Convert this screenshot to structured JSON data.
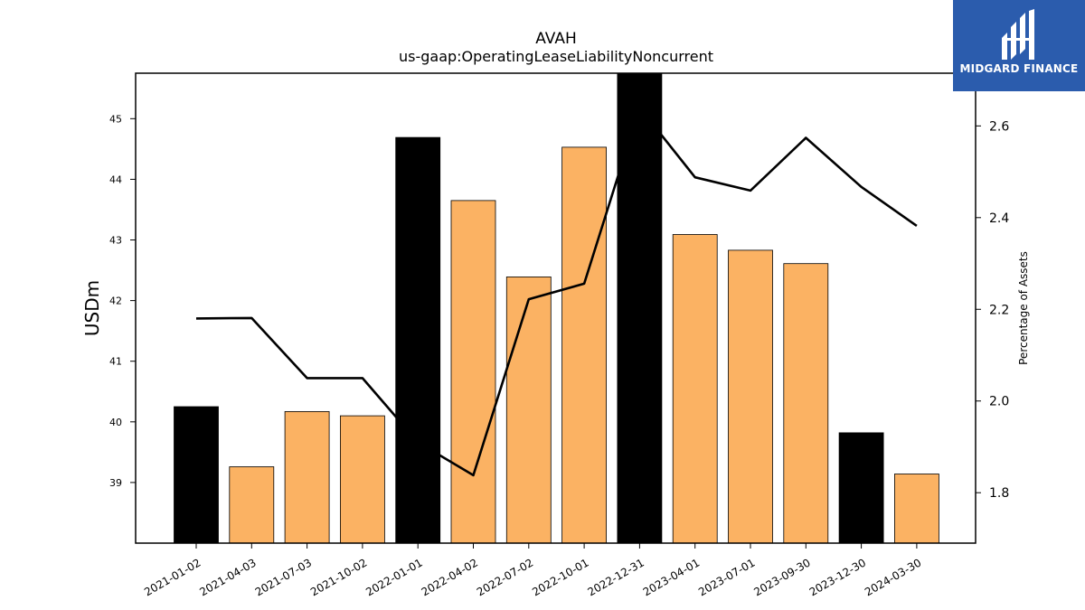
{
  "chart_data": {
    "type": "bar",
    "title": "AVAH",
    "subtitle": "us-gaap:OperatingLeaseLiabilityNoncurrent",
    "ylabel": "USDm",
    "y2label": "Percentage of Assets",
    "categories": [
      "2021-01-02",
      "2021-04-03",
      "2021-07-03",
      "2021-10-02",
      "2022-01-01",
      "2022-04-02",
      "2022-07-02",
      "2022-10-01",
      "2022-12-31",
      "2023-04-01",
      "2023-07-01",
      "2023-09-30",
      "2023-12-30",
      "2024-03-30"
    ],
    "series": [
      {
        "type": "bar",
        "values": [
          40.25,
          39.26,
          40.17,
          40.1,
          44.69,
          43.65,
          42.39,
          44.53,
          45.85,
          43.09,
          42.83,
          42.61,
          39.82,
          39.14
        ],
        "highlight": [
          true,
          false,
          false,
          false,
          true,
          false,
          false,
          false,
          true,
          false,
          false,
          false,
          true,
          false
        ]
      },
      {
        "type": "line",
        "axis": "right",
        "values": [
          2.18,
          2.181,
          2.05,
          2.05,
          1.91,
          1.838,
          2.222,
          2.256,
          2.64,
          2.488,
          2.459,
          2.574,
          2.467,
          2.382
        ]
      }
    ],
    "yticks": [
      39,
      40,
      41,
      42,
      43,
      44,
      45
    ],
    "ylim": [
      38.0,
      45.75
    ],
    "y2ticks": [
      1.8,
      2.0,
      2.2,
      2.4,
      2.6
    ],
    "y2lim": [
      1.69,
      2.715
    ],
    "colors": {
      "bar": "#fbb263",
      "highlight": "#000000",
      "line": "#000000"
    },
    "grid": false
  },
  "logo": {
    "text": "MIDGARD FINANCE"
  }
}
